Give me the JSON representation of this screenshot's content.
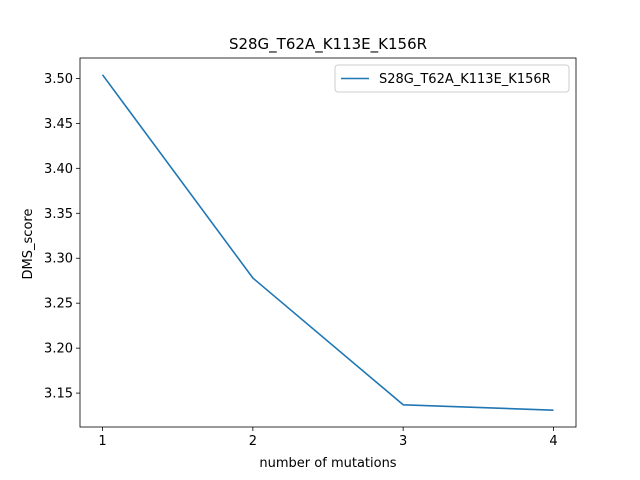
{
  "chart_data": {
    "type": "line",
    "title": "S28G_T62A_K113E_K156R",
    "xlabel": "number of mutations",
    "ylabel": "DMS_score",
    "x": [
      1,
      2,
      3,
      4
    ],
    "series": [
      {
        "name": "S28G_T62A_K113E_K156R",
        "color": "#1f77b4",
        "values": [
          3.504,
          3.278,
          3.137,
          3.131
        ]
      }
    ],
    "xticks": [
      1,
      2,
      3,
      4
    ],
    "xtick_labels": [
      "1",
      "2",
      "3",
      "4"
    ],
    "yticks": [
      3.15,
      3.2,
      3.25,
      3.3,
      3.35,
      3.4,
      3.45,
      3.5
    ],
    "ytick_labels": [
      "3.15",
      "3.20",
      "3.25",
      "3.30",
      "3.35",
      "3.40",
      "3.45",
      "3.50"
    ],
    "xlim": [
      0.85,
      4.15
    ],
    "ylim": [
      3.1123,
      3.5227
    ],
    "grid": false,
    "legend_position": "top-right"
  }
}
